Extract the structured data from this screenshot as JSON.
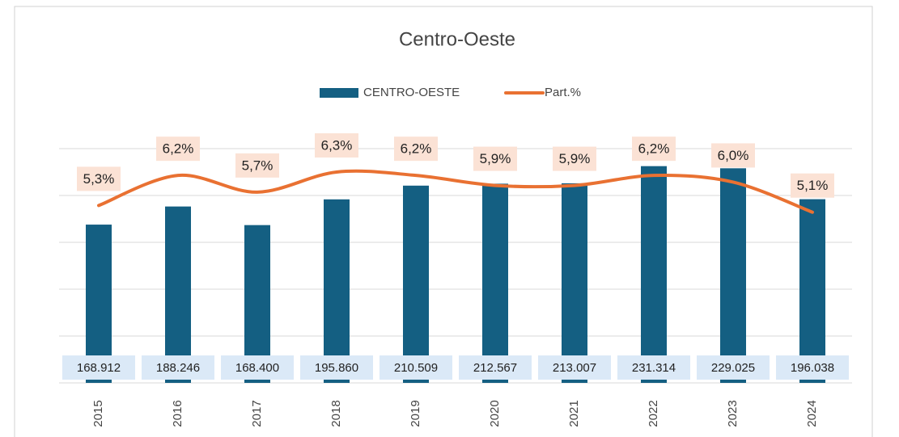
{
  "chart_data": {
    "type": "bar",
    "title": "Centro-Oeste",
    "categories": [
      "2015",
      "2016",
      "2017",
      "2018",
      "2019",
      "2020",
      "2021",
      "2022",
      "2023",
      "2024"
    ],
    "series": [
      {
        "name": "CENTRO-OESTE",
        "type": "bar",
        "color": "#145f82",
        "values": [
          168912,
          188246,
          168400,
          195860,
          210509,
          212567,
          213007,
          231314,
          229025,
          196038
        ],
        "value_labels": [
          "168.912",
          "188.246",
          "168.400",
          "195.860",
          "210.509",
          "212.567",
          "213.007",
          "231.314",
          "229.025",
          "196.038"
        ]
      },
      {
        "name": "Part.%",
        "type": "line",
        "axis": "y2",
        "color": "#e97132",
        "values": [
          5.3,
          6.2,
          5.7,
          6.3,
          6.2,
          5.9,
          5.9,
          6.2,
          6.0,
          5.1
        ],
        "value_labels": [
          "5,3%",
          "6,2%",
          "5,7%",
          "6,3%",
          "6,2%",
          "5,9%",
          "5,9%",
          "6,2%",
          "6,0%",
          "5,1%"
        ]
      }
    ],
    "ylim": [
      0,
      250000
    ],
    "yticks": [
      0,
      50000,
      100000,
      150000,
      200000,
      250000
    ],
    "y2lim": [
      0,
      7
    ],
    "grid": true,
    "legend": "top"
  }
}
